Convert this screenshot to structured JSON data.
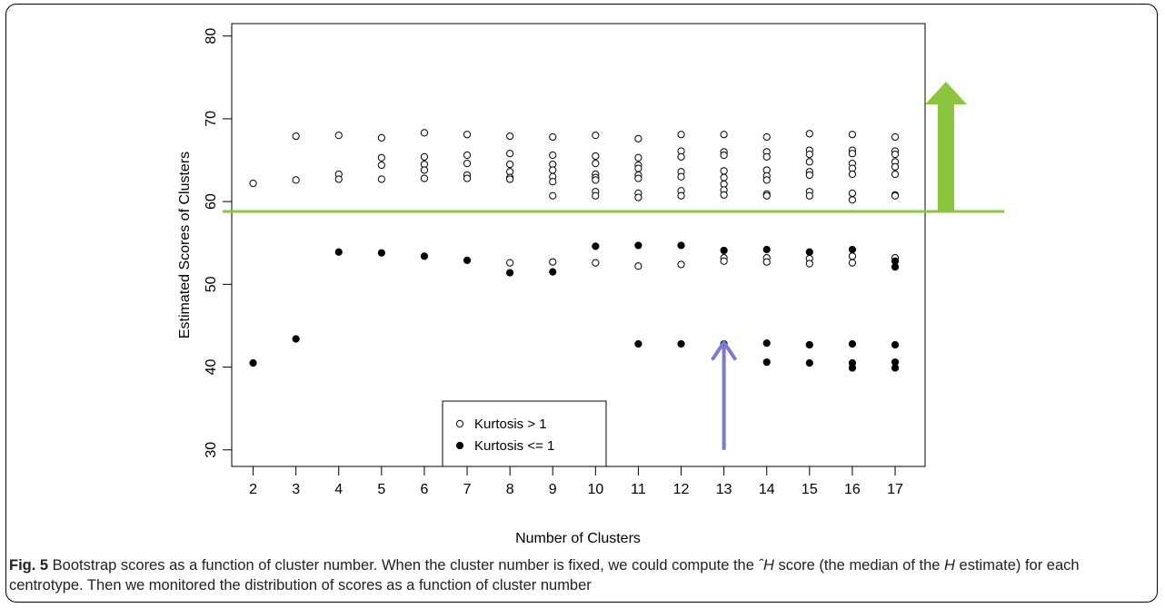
{
  "chart_data": {
    "type": "scatter",
    "xlabel": "Number of Clusters",
    "ylabel": "Estimated Scores of Clusters",
    "xlim": [
      1.5,
      17.7
    ],
    "ylim": [
      28,
      81.5
    ],
    "x_ticks": [
      2,
      3,
      4,
      5,
      6,
      7,
      8,
      9,
      10,
      11,
      12,
      13,
      14,
      15,
      16,
      17
    ],
    "y_ticks": [
      30,
      40,
      50,
      60,
      70,
      80
    ],
    "legend_position": "bottom-center",
    "series": [
      {
        "name": "Kurtosis > 1",
        "marker": "open-circle",
        "points": [
          [
            2,
            62.2
          ],
          [
            3,
            67.9
          ],
          [
            3,
            62.6
          ],
          [
            4,
            68.0
          ],
          [
            4,
            63.3
          ],
          [
            4,
            62.7
          ],
          [
            5,
            67.7
          ],
          [
            5,
            65.3
          ],
          [
            5,
            64.4
          ],
          [
            5,
            62.7
          ],
          [
            6,
            68.3
          ],
          [
            6,
            65.4
          ],
          [
            6,
            64.5
          ],
          [
            6,
            63.8
          ],
          [
            6,
            62.8
          ],
          [
            7,
            68.1
          ],
          [
            7,
            65.6
          ],
          [
            7,
            64.6
          ],
          [
            7,
            63.2
          ],
          [
            7,
            62.8
          ],
          [
            8,
            67.9
          ],
          [
            8,
            65.8
          ],
          [
            8,
            64.5
          ],
          [
            8,
            63.6
          ],
          [
            8,
            62.9
          ],
          [
            8,
            62.7
          ],
          [
            8,
            52.6
          ],
          [
            9,
            67.8
          ],
          [
            9,
            65.6
          ],
          [
            9,
            64.5
          ],
          [
            9,
            63.8
          ],
          [
            9,
            63.0
          ],
          [
            9,
            62.4
          ],
          [
            9,
            60.7
          ],
          [
            9,
            52.7
          ],
          [
            10,
            68.0
          ],
          [
            10,
            65.5
          ],
          [
            10,
            64.6
          ],
          [
            10,
            63.3
          ],
          [
            10,
            62.9
          ],
          [
            10,
            62.6
          ],
          [
            10,
            61.2
          ],
          [
            10,
            60.7
          ],
          [
            10,
            52.6
          ],
          [
            11,
            67.6
          ],
          [
            11,
            65.3
          ],
          [
            11,
            64.4
          ],
          [
            11,
            64.0
          ],
          [
            11,
            63.2
          ],
          [
            11,
            62.8
          ],
          [
            11,
            61.0
          ],
          [
            11,
            60.5
          ],
          [
            11,
            52.2
          ],
          [
            12,
            68.1
          ],
          [
            12,
            66.1
          ],
          [
            12,
            65.4
          ],
          [
            12,
            63.6
          ],
          [
            12,
            63.0
          ],
          [
            12,
            61.3
          ],
          [
            12,
            60.7
          ],
          [
            12,
            52.4
          ],
          [
            13,
            68.1
          ],
          [
            13,
            66.0
          ],
          [
            13,
            65.6
          ],
          [
            13,
            63.7
          ],
          [
            13,
            62.9
          ],
          [
            13,
            62.1
          ],
          [
            13,
            61.4
          ],
          [
            13,
            60.8
          ],
          [
            13,
            53.2
          ],
          [
            13,
            52.8
          ],
          [
            14,
            67.8
          ],
          [
            14,
            66.0
          ],
          [
            14,
            65.4
          ],
          [
            14,
            63.8
          ],
          [
            14,
            63.1
          ],
          [
            14,
            62.6
          ],
          [
            14,
            60.9
          ],
          [
            14,
            60.7
          ],
          [
            14,
            53.2
          ],
          [
            14,
            52.7
          ],
          [
            15,
            68.2
          ],
          [
            15,
            66.2
          ],
          [
            15,
            65.7
          ],
          [
            15,
            64.8
          ],
          [
            15,
            63.6
          ],
          [
            15,
            63.2
          ],
          [
            15,
            61.2
          ],
          [
            15,
            60.7
          ],
          [
            15,
            53.1
          ],
          [
            15,
            52.5
          ],
          [
            16,
            68.1
          ],
          [
            16,
            66.2
          ],
          [
            16,
            65.8
          ],
          [
            16,
            64.6
          ],
          [
            16,
            64.0
          ],
          [
            16,
            63.3
          ],
          [
            16,
            61.0
          ],
          [
            16,
            60.2
          ],
          [
            16,
            53.4
          ],
          [
            16,
            52.6
          ],
          [
            17,
            67.8
          ],
          [
            17,
            66.1
          ],
          [
            17,
            65.7
          ],
          [
            17,
            64.8
          ],
          [
            17,
            64.2
          ],
          [
            17,
            63.3
          ],
          [
            17,
            60.8
          ],
          [
            17,
            60.7
          ],
          [
            17,
            53.2
          ]
        ]
      },
      {
        "name": "Kurtosis <= 1",
        "marker": "filled-circle",
        "points": [
          [
            2,
            40.5
          ],
          [
            3,
            43.4
          ],
          [
            4,
            53.9
          ],
          [
            5,
            53.8
          ],
          [
            6,
            53.4
          ],
          [
            7,
            52.9
          ],
          [
            8,
            51.4
          ],
          [
            9,
            51.5
          ],
          [
            10,
            54.6
          ],
          [
            11,
            54.7
          ],
          [
            11,
            42.8
          ],
          [
            12,
            54.7
          ],
          [
            12,
            42.8
          ],
          [
            13,
            54.1
          ],
          [
            13,
            42.8
          ],
          [
            14,
            54.2
          ],
          [
            14,
            42.9
          ],
          [
            14,
            40.6
          ],
          [
            15,
            53.9
          ],
          [
            15,
            42.7
          ],
          [
            15,
            40.5
          ],
          [
            16,
            54.2
          ],
          [
            16,
            42.8
          ],
          [
            16,
            40.5
          ],
          [
            16,
            39.9
          ],
          [
            17,
            52.8
          ],
          [
            17,
            52.1
          ],
          [
            17,
            42.7
          ],
          [
            17,
            40.6
          ],
          [
            17,
            39.9
          ]
        ]
      }
    ],
    "annotations": {
      "threshold_line_y": 58.8,
      "threshold_color": "#8cc63f",
      "up_arrow_color": "#8cc63f",
      "arrow_at_13_color": "#7b79d4",
      "arrow_at_13": {
        "x": 13,
        "y_from": 30,
        "y_to": 43
      }
    }
  },
  "caption": {
    "fig_label": "Fig. 5",
    "text_1": " Bootstrap scores as a function of cluster number. When the cluster number is fixed, we could compute the ",
    "symbol_hat": "ˆ",
    "symbol_H": "H",
    "text_2": " score (the median of the ",
    "symbol_H2": "H",
    "text_3": " estimate) for each centrotype. Then we monitored the distribution of scores as a function of cluster number"
  }
}
